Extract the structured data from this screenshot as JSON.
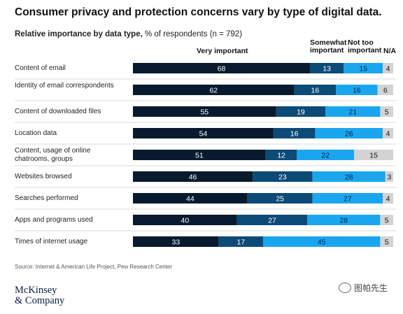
{
  "title": "Consumer privacy and protection concerns vary by type of digital data.",
  "subtitle_bold": "Relative importance by data type,",
  "subtitle_rest": " % of respondents (n = 792)",
  "columns": [
    "Very important",
    "Somewhat important",
    "Not too important",
    "N/A"
  ],
  "colors": [
    "#071a2e",
    "#0c4a77",
    "#1aa6ee",
    "#d3d3d3"
  ],
  "chart_data": {
    "type": "bar",
    "orientation": "horizontal",
    "stacked": true,
    "categories": [
      "Content of email",
      "Identity of email correspondents",
      "Content of downloaded files",
      "Location data",
      "Content, usage of online chatrooms, groups",
      "Websites browsed",
      "Searches performed",
      "Apps and programs used",
      "Times of internet usage"
    ],
    "series": [
      {
        "name": "Very important",
        "values": [
          68,
          62,
          55,
          54,
          51,
          46,
          44,
          40,
          33
        ]
      },
      {
        "name": "Somewhat important",
        "values": [
          13,
          16,
          19,
          16,
          12,
          23,
          25,
          27,
          17
        ]
      },
      {
        "name": "Not too important",
        "values": [
          15,
          16,
          21,
          26,
          22,
          28,
          27,
          28,
          45
        ]
      },
      {
        "name": "N/A",
        "values": [
          4,
          6,
          5,
          4,
          15,
          3,
          4,
          5,
          5
        ]
      }
    ],
    "legend": "top"
  },
  "source": "Source: Internet & American Life Project, Pew Research Center",
  "logo": {
    "line1": "McKinsey",
    "line2": "& Company"
  },
  "watermark": "图帕先生"
}
